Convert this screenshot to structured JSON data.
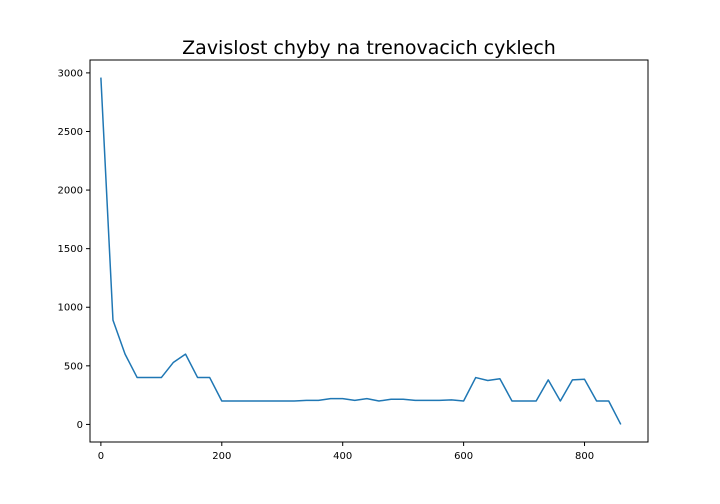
{
  "chart_data": {
    "type": "line",
    "title": "Zavislost chyby na trenovacich cyklech",
    "xlabel": "",
    "ylabel": "",
    "xlim": [
      -18,
      905
    ],
    "ylim": [
      -150,
      3110
    ],
    "xticks": [
      0,
      200,
      400,
      600,
      800
    ],
    "yticks": [
      0,
      500,
      1000,
      1500,
      2000,
      2500,
      3000
    ],
    "grid": false,
    "line_color": "#1f77b4",
    "series": [
      {
        "x": [
          0,
          20,
          40,
          60,
          80,
          100,
          120,
          140,
          160,
          180,
          200,
          220,
          240,
          260,
          280,
          300,
          320,
          340,
          360,
          380,
          400,
          420,
          440,
          460,
          480,
          500,
          520,
          540,
          560,
          580,
          600,
          620,
          640,
          660,
          680,
          700,
          720,
          740,
          760,
          780,
          800,
          820,
          840,
          860
        ],
        "values": [
          2960,
          890,
          600,
          400,
          400,
          400,
          530,
          600,
          400,
          400,
          200,
          200,
          200,
          200,
          200,
          200,
          200,
          205,
          205,
          220,
          220,
          205,
          220,
          200,
          215,
          215,
          205,
          205,
          205,
          210,
          200,
          400,
          375,
          390,
          200,
          200,
          200,
          380,
          200,
          380,
          385,
          200,
          200,
          0
        ]
      }
    ]
  }
}
